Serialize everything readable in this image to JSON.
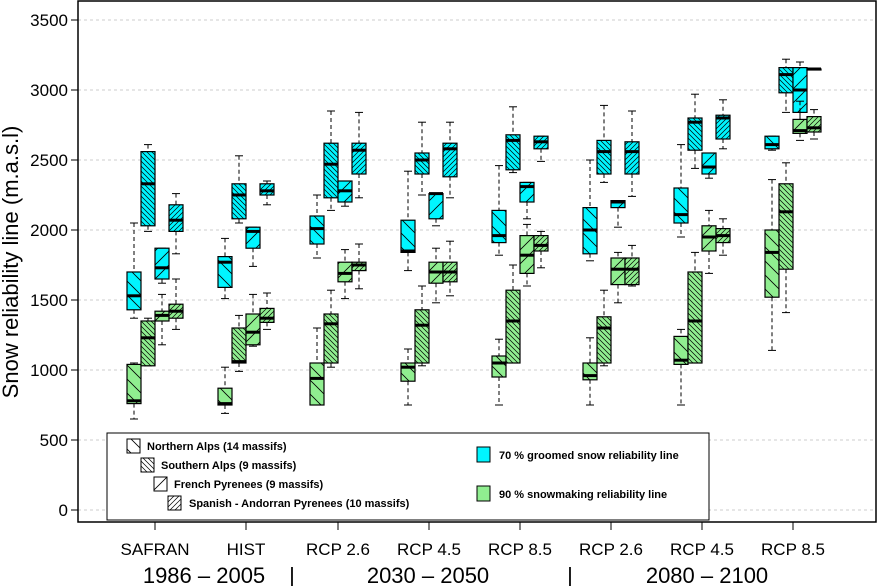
{
  "chart_data": {
    "type": "boxplot",
    "title": "",
    "xlabel": "",
    "ylabel": "Snow reliability line (m.a.s.l)",
    "ylim": [
      -100,
      3600
    ],
    "yticks": [
      0,
      500,
      1000,
      1500,
      2000,
      2500,
      3000,
      3500
    ],
    "grid": "horizontal-dashed",
    "categories": [
      "SAFRAN",
      "HIST",
      "RCP 2.6",
      "RCP 4.5",
      "RCP 8.5",
      "RCP 2.6",
      "RCP 4.5",
      "RCP 8.5"
    ],
    "periods": [
      {
        "label": "1986 – 2005",
        "categories": [
          0,
          1
        ]
      },
      {
        "label": "2030 – 2050",
        "categories": [
          2,
          3,
          4
        ]
      },
      {
        "label": "2080 – 2100",
        "categories": [
          5,
          6,
          7
        ]
      }
    ],
    "period_separator": "|",
    "regions": [
      {
        "name": "Northern Alps (14 massifs)",
        "pattern": "sparse-backslash"
      },
      {
        "name": "Southern Alps (9 massifs)",
        "pattern": "dense-backslash"
      },
      {
        "name": "French Pyrenees (9 massifs)",
        "pattern": "sparse-slash"
      },
      {
        "name": "Spanish - Andorran Pyrenees (10 massifs)",
        "pattern": "dense-slash"
      }
    ],
    "series": [
      {
        "name": "70 % groomed snow reliability line",
        "color": "#00f5ff",
        "boxes": [
          [
            {
              "min": 1370,
              "q1": 1430,
              "median": 1530,
              "q3": 1700,
              "max": 2050
            },
            {
              "min": 1990,
              "q1": 2030,
              "median": 2330,
              "q3": 2560,
              "max": 2610
            },
            {
              "min": 1620,
              "q1": 1650,
              "median": 1730,
              "q3": 1870,
              "max": 1870
            },
            {
              "min": 1830,
              "q1": 1990,
              "median": 2070,
              "q3": 2180,
              "max": 2260
            }
          ],
          [
            {
              "min": 1510,
              "q1": 1590,
              "median": 1770,
              "q3": 1810,
              "max": 1940
            },
            {
              "min": 2050,
              "q1": 2080,
              "median": 2250,
              "q3": 2330,
              "max": 2530
            },
            {
              "min": 1740,
              "q1": 1870,
              "median": 1990,
              "q3": 2020,
              "max": 2020
            },
            {
              "min": 2180,
              "q1": 2250,
              "median": 2280,
              "q3": 2330,
              "max": 2350
            }
          ],
          [
            {
              "min": 1800,
              "q1": 1900,
              "median": 2010,
              "q3": 2100,
              "max": 2250
            },
            {
              "min": 2140,
              "q1": 2230,
              "median": 2470,
              "q3": 2620,
              "max": 2850
            },
            {
              "min": 2170,
              "q1": 2200,
              "median": 2280,
              "q3": 2350,
              "max": 2350
            },
            {
              "min": 2230,
              "q1": 2400,
              "median": 2570,
              "q3": 2620,
              "max": 2840
            }
          ],
          [
            {
              "min": 1710,
              "q1": 1840,
              "median": 1850,
              "q3": 2070,
              "max": 2420
            },
            {
              "min": 2250,
              "q1": 2400,
              "median": 2500,
              "q3": 2550,
              "max": 2770
            },
            {
              "min": 2030,
              "q1": 2080,
              "median": 2260,
              "q3": 2260,
              "max": 2260
            },
            {
              "min": 2230,
              "q1": 2380,
              "median": 2580,
              "q3": 2620,
              "max": 2770
            }
          ],
          [
            {
              "min": 1820,
              "q1": 1910,
              "median": 1960,
              "q3": 2140,
              "max": 2460
            },
            {
              "min": 2410,
              "q1": 2430,
              "median": 2640,
              "q3": 2680,
              "max": 2880
            },
            {
              "min": 2080,
              "q1": 2200,
              "median": 2310,
              "q3": 2340,
              "max": 2340
            },
            {
              "min": 2490,
              "q1": 2580,
              "median": 2630,
              "q3": 2670,
              "max": 2670
            }
          ],
          [
            {
              "min": 1780,
              "q1": 1830,
              "median": 2000,
              "q3": 2160,
              "max": 2500
            },
            {
              "min": 2340,
              "q1": 2400,
              "median": 2560,
              "q3": 2640,
              "max": 2890
            },
            {
              "min": 2020,
              "q1": 2160,
              "median": 2200,
              "q3": 2210,
              "max": 2210
            },
            {
              "min": 2240,
              "q1": 2400,
              "median": 2560,
              "q3": 2630,
              "max": 2850
            }
          ],
          [
            {
              "min": 1950,
              "q1": 2050,
              "median": 2110,
              "q3": 2300,
              "max": 2610
            },
            {
              "min": 2440,
              "q1": 2570,
              "median": 2770,
              "q3": 2800,
              "max": 2970
            },
            {
              "min": 2370,
              "q1": 2400,
              "median": 2450,
              "q3": 2550,
              "max": 2550
            },
            {
              "min": 2580,
              "q1": 2650,
              "median": 2800,
              "q3": 2820,
              "max": 2930
            }
          ],
          [
            {
              "min": 2570,
              "q1": 2580,
              "median": 2610,
              "q3": 2670,
              "max": 2670
            },
            {
              "min": 2840,
              "q1": 2980,
              "median": 3110,
              "q3": 3160,
              "max": 3220
            },
            {
              "min": 2720,
              "q1": 2840,
              "median": 3000,
              "q3": 3160,
              "max": 3200
            },
            {
              "min": 3150,
              "q1": 3150,
              "median": 3150,
              "q3": 3150,
              "max": 3150
            }
          ]
        ]
      },
      {
        "name": "90 % snowmaking reliability line",
        "color": "#90ee90",
        "boxes": [
          [
            {
              "min": 650,
              "q1": 760,
              "median": 780,
              "q3": 1040,
              "max": 1050
            },
            {
              "min": 1030,
              "q1": 1030,
              "median": 1230,
              "q3": 1350,
              "max": 1370
            },
            {
              "min": 1180,
              "q1": 1350,
              "median": 1390,
              "q3": 1420,
              "max": 1540
            },
            {
              "min": 1290,
              "q1": 1370,
              "median": 1420,
              "q3": 1470,
              "max": 1650
            }
          ],
          [
            {
              "min": 690,
              "q1": 750,
              "median": 760,
              "q3": 870,
              "max": 1020
            },
            {
              "min": 990,
              "q1": 1050,
              "median": 1060,
              "q3": 1300,
              "max": 1390
            },
            {
              "min": 1170,
              "q1": 1180,
              "median": 1270,
              "q3": 1400,
              "max": 1540
            },
            {
              "min": 1290,
              "q1": 1340,
              "median": 1370,
              "q3": 1440,
              "max": 1550
            }
          ],
          [
            {
              "min": 750,
              "q1": 750,
              "median": 940,
              "q3": 1050,
              "max": 1300
            },
            {
              "min": 1020,
              "q1": 1050,
              "median": 1330,
              "q3": 1400,
              "max": 1570
            },
            {
              "min": 1510,
              "q1": 1630,
              "median": 1690,
              "q3": 1770,
              "max": 1860
            },
            {
              "min": 1580,
              "q1": 1710,
              "median": 1750,
              "q3": 1770,
              "max": 1900
            }
          ],
          [
            {
              "min": 750,
              "q1": 920,
              "median": 1020,
              "q3": 1050,
              "max": 1150
            },
            {
              "min": 1030,
              "q1": 1050,
              "median": 1320,
              "q3": 1430,
              "max": 1600
            },
            {
              "min": 1480,
              "q1": 1620,
              "median": 1700,
              "q3": 1770,
              "max": 1870
            },
            {
              "min": 1530,
              "q1": 1630,
              "median": 1700,
              "q3": 1770,
              "max": 1920
            }
          ],
          [
            {
              "min": 750,
              "q1": 950,
              "median": 1050,
              "q3": 1100,
              "max": 1220
            },
            {
              "min": 1050,
              "q1": 1050,
              "median": 1350,
              "q3": 1570,
              "max": 1750
            },
            {
              "min": 1600,
              "q1": 1690,
              "median": 1820,
              "q3": 1960,
              "max": 2040
            },
            {
              "min": 1730,
              "q1": 1850,
              "median": 1890,
              "q3": 1960,
              "max": 1990
            }
          ],
          [
            {
              "min": 750,
              "q1": 930,
              "median": 960,
              "q3": 1050,
              "max": 1230
            },
            {
              "min": 1030,
              "q1": 1050,
              "median": 1300,
              "q3": 1380,
              "max": 1570
            },
            {
              "min": 1480,
              "q1": 1610,
              "median": 1720,
              "q3": 1800,
              "max": 1840
            },
            {
              "min": 1600,
              "q1": 1610,
              "median": 1720,
              "q3": 1800,
              "max": 1890
            }
          ],
          [
            {
              "min": 750,
              "q1": 1040,
              "median": 1070,
              "q3": 1240,
              "max": 1290
            },
            {
              "min": 1050,
              "q1": 1050,
              "median": 1350,
              "q3": 1700,
              "max": 1840
            },
            {
              "min": 1690,
              "q1": 1850,
              "median": 1950,
              "q3": 2030,
              "max": 2140
            },
            {
              "min": 1820,
              "q1": 1910,
              "median": 1960,
              "q3": 2010,
              "max": 2080
            }
          ],
          [
            {
              "min": 1140,
              "q1": 1520,
              "median": 1840,
              "q3": 2000,
              "max": 2360
            },
            {
              "min": 1410,
              "q1": 1720,
              "median": 2130,
              "q3": 2330,
              "max": 2480
            },
            {
              "min": 2640,
              "q1": 2690,
              "median": 2710,
              "q3": 2790,
              "max": 2920
            },
            {
              "min": 2650,
              "q1": 2700,
              "median": 2730,
              "q3": 2810,
              "max": 2860
            }
          ]
        ]
      }
    ],
    "legend_regions_position": "bottom-left",
    "legend_colors_position": "bottom-center"
  }
}
